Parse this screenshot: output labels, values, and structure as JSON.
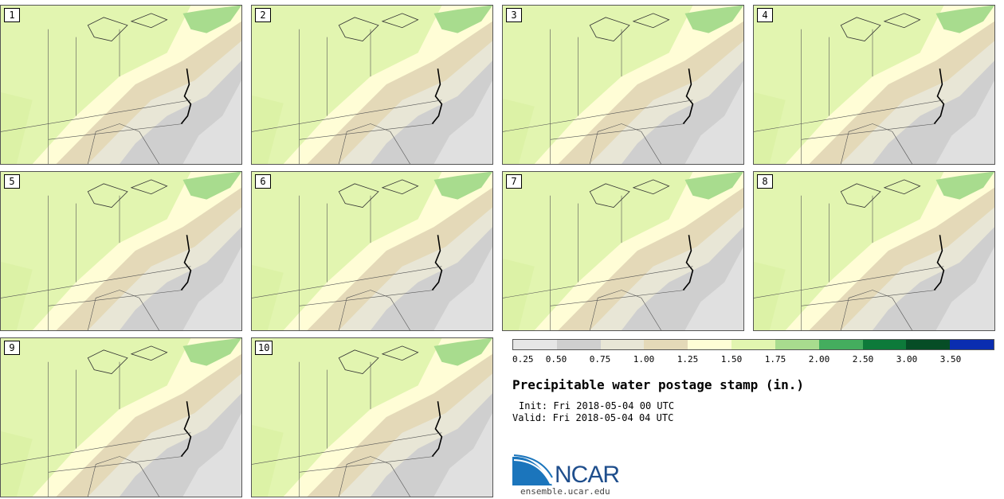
{
  "stamps": [
    {
      "label": "1"
    },
    {
      "label": "2"
    },
    {
      "label": "3"
    },
    {
      "label": "4"
    },
    {
      "label": "5"
    },
    {
      "label": "6"
    },
    {
      "label": "7"
    },
    {
      "label": "8"
    },
    {
      "label": "9"
    },
    {
      "label": "10"
    }
  ],
  "colorbar": {
    "colors": [
      "#e6e6e6",
      "#cfcfcf",
      "#e8e6d6",
      "#e4d9b8",
      "#fffdd6",
      "#e2f5b0",
      "#a8dc8e",
      "#44ad5e",
      "#0d7a3a",
      "#064d26",
      "#0a2db0"
    ],
    "ticks": [
      "0.25",
      "0.50",
      "0.75",
      "1.00",
      "1.25",
      "1.50",
      "1.75",
      "2.00",
      "2.50",
      "3.00",
      "3.50"
    ]
  },
  "title": "Precipitable water postage stamp (in.)",
  "init": "Init: Fri 2018-05-04 00 UTC",
  "valid": "Valid: Fri 2018-05-04 04 UTC",
  "logo": {
    "name": "NCAR",
    "site": "ensemble.ucar.edu"
  }
}
